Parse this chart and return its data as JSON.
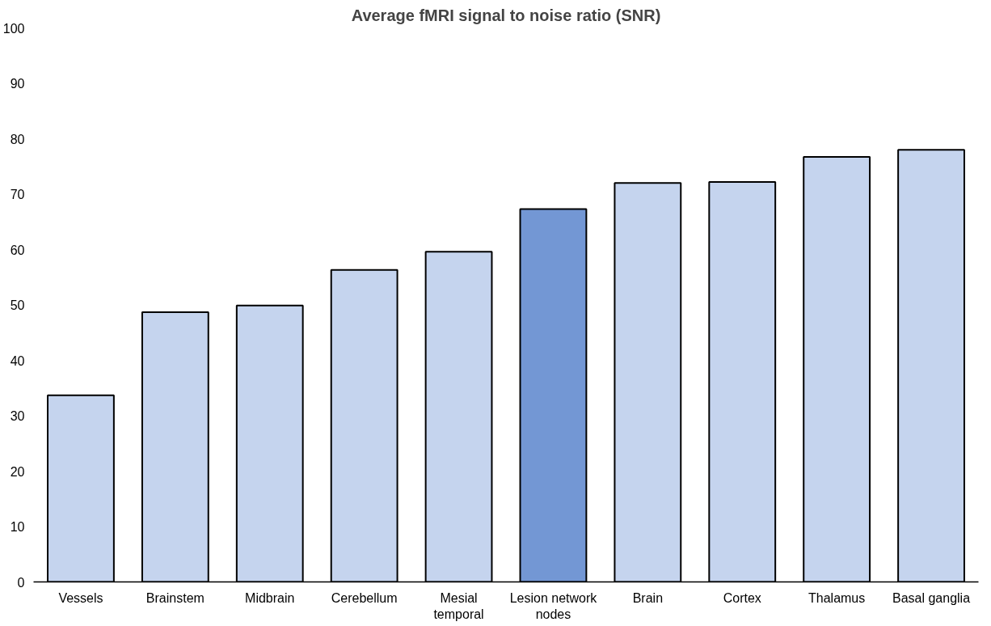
{
  "chart_data": {
    "type": "bar",
    "title": "Average fMRI signal to noise ratio (SNR)",
    "categories": [
      "Vessels",
      "Brainstem",
      "Midbrain",
      "Cerebellum",
      "Mesial temporal",
      "Lesion network nodes",
      "Brain",
      "Cortex",
      "Thalamus",
      "Basal ganglia"
    ],
    "values": [
      33.7,
      48.7,
      49.9,
      56.3,
      59.6,
      67.3,
      72.0,
      72.2,
      76.7,
      78.0
    ],
    "colors": [
      "#c5d4ee",
      "#c5d4ee",
      "#c5d4ee",
      "#c5d4ee",
      "#c5d4ee",
      "#7397d4",
      "#c5d4ee",
      "#c5d4ee",
      "#c5d4ee",
      "#c5d4ee"
    ],
    "ylim": [
      0,
      100
    ],
    "yticks": [
      0,
      10,
      20,
      30,
      40,
      50,
      60,
      70,
      80,
      90,
      100
    ],
    "grid": false
  }
}
